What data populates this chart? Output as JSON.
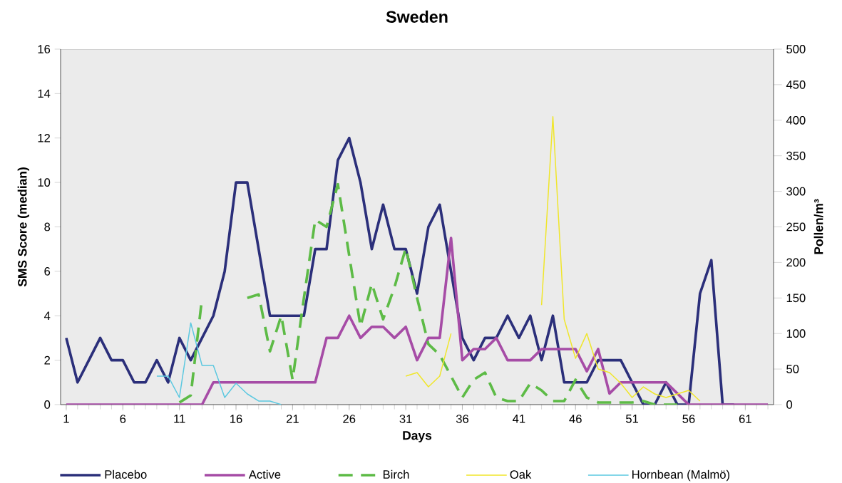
{
  "chart_data": {
    "type": "line",
    "title": "Sweden",
    "xlabel": "Days",
    "ylabel": "SMS Score (median)",
    "y2label": "Pollen/m³",
    "x": [
      1,
      2,
      3,
      4,
      5,
      6,
      7,
      8,
      9,
      10,
      11,
      12,
      13,
      14,
      15,
      16,
      17,
      18,
      19,
      20,
      21,
      22,
      23,
      24,
      25,
      26,
      27,
      28,
      29,
      30,
      31,
      32,
      33,
      34,
      35,
      36,
      37,
      38,
      39,
      40,
      41,
      42,
      43,
      44,
      45,
      46,
      47,
      48,
      49,
      50,
      51,
      52,
      53,
      54,
      55,
      56,
      57,
      58,
      59,
      60,
      61,
      62,
      63
    ],
    "xlim": [
      0.5,
      63.5
    ],
    "xticks": [
      1,
      6,
      11,
      16,
      21,
      26,
      31,
      36,
      41,
      46,
      51,
      56,
      61
    ],
    "ylim": [
      0,
      16
    ],
    "yticks": [
      0,
      2,
      4,
      6,
      8,
      10,
      12,
      14,
      16
    ],
    "y2lim": [
      0,
      500
    ],
    "y2ticks": [
      0,
      50,
      100,
      150,
      200,
      250,
      300,
      350,
      400,
      450,
      500
    ],
    "legend": "bottom",
    "line_style": "solid",
    "series": [
      {
        "name": "Placebo",
        "color": "#2b2f7a",
        "values": [
          3,
          1,
          2,
          3,
          2,
          2,
          1,
          1,
          2,
          1,
          3,
          2,
          3,
          4,
          6,
          10,
          10,
          7,
          4,
          4,
          4,
          4,
          7,
          7,
          11,
          12,
          10,
          7,
          9,
          7,
          7,
          5,
          8,
          9,
          6,
          3,
          2,
          3,
          3,
          4,
          3,
          4,
          2,
          4,
          1,
          1,
          1,
          2,
          2,
          2,
          1,
          0,
          0,
          1,
          0,
          0,
          5,
          6.5,
          0,
          0,
          null,
          null,
          null
        ]
      },
      {
        "name": "Active",
        "color": "#a64ca6",
        "values": [
          0,
          0,
          0,
          0,
          0,
          0,
          0,
          0,
          0,
          0,
          0,
          0,
          0,
          1,
          1,
          1,
          1,
          1,
          1,
          1,
          1,
          1,
          1,
          3,
          3,
          4,
          3,
          3.5,
          3.5,
          3,
          3.5,
          2,
          3,
          3,
          7.5,
          2,
          2.5,
          2.5,
          3,
          2,
          2,
          2,
          2.5,
          2.5,
          2.5,
          2.5,
          1.5,
          2.5,
          0.5,
          1,
          1,
          1,
          1,
          1,
          0.5,
          0,
          0,
          0,
          0,
          0,
          0,
          0,
          0
        ]
      },
      {
        "name": "Birch",
        "color": "#5dbb46",
        "axis": "y2",
        "line_style": "dashed",
        "values": [
          null,
          null,
          null,
          null,
          null,
          null,
          null,
          null,
          null,
          null,
          3,
          13,
          150,
          null,
          null,
          null,
          150,
          155,
          75,
          125,
          35,
          150,
          260,
          250,
          310,
          210,
          110,
          170,
          120,
          165,
          220,
          150,
          85,
          70,
          40,
          10,
          35,
          45,
          10,
          5,
          5,
          30,
          20,
          5,
          5,
          35,
          10,
          3,
          3,
          3,
          3,
          5,
          0,
          0,
          0,
          null,
          null,
          null,
          null,
          null,
          null,
          null,
          null
        ]
      },
      {
        "name": "Oak",
        "color": "#f0e62a",
        "axis": "y2",
        "values": [
          null,
          null,
          null,
          null,
          null,
          null,
          null,
          null,
          null,
          null,
          null,
          null,
          null,
          null,
          null,
          null,
          null,
          null,
          null,
          null,
          null,
          null,
          null,
          null,
          null,
          null,
          null,
          null,
          null,
          null,
          40,
          45,
          25,
          40,
          100,
          null,
          null,
          null,
          null,
          null,
          null,
          null,
          140,
          405,
          120,
          65,
          100,
          50,
          45,
          30,
          10,
          25,
          15,
          10,
          15,
          20,
          5,
          null,
          null,
          null,
          null,
          null,
          null
        ]
      },
      {
        "name": "Hornbean (Malmö)",
        "color": "#5bc8e0",
        "axis": "y2",
        "values": [
          null,
          null,
          null,
          null,
          null,
          null,
          null,
          null,
          40,
          40,
          10,
          115,
          55,
          55,
          10,
          30,
          15,
          5,
          5,
          0,
          null,
          null,
          null,
          null,
          null,
          null,
          null,
          null,
          null,
          null,
          null,
          null,
          null,
          null,
          null,
          null,
          null,
          null,
          null,
          null,
          null,
          null,
          null,
          null,
          null,
          null,
          null,
          null,
          null,
          null,
          null,
          null,
          null,
          null,
          null,
          null,
          null,
          null,
          null,
          null,
          null,
          null,
          null
        ]
      }
    ]
  }
}
